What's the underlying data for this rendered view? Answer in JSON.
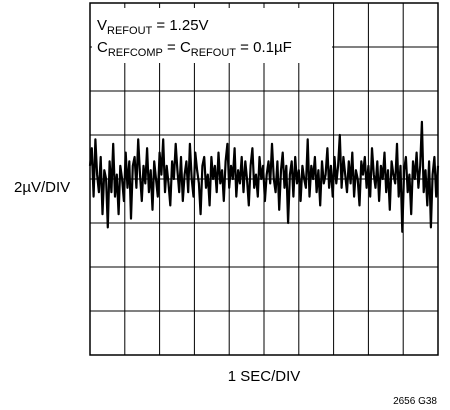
{
  "chart_data": {
    "type": "line",
    "title": "",
    "conditions": {
      "line1": {
        "prefix": "V",
        "sub": "REFOUT",
        "rest": " = 1.25V"
      },
      "line2": {
        "p1": "C",
        "s1": "REFCOMP",
        "p2": " = C",
        "s2": "REFOUT",
        "rest": " = 0.1µF"
      }
    },
    "ylabel": "2µV/DIV",
    "xlabel": "1 SEC/DIV",
    "figure_id": "2656 G38",
    "x_divisions": 10,
    "y_divisions": 8,
    "grid": true,
    "ylim": [
      -8,
      8
    ],
    "xlim": [
      0,
      10
    ],
    "series": [
      {
        "color": "#000000",
        "values": [
          0.6,
          1.4,
          -0.8,
          1.8,
          0.2,
          -0.6,
          1.0,
          -1.6,
          0.4,
          0.0,
          -2.2,
          0.8,
          -0.6,
          1.6,
          -0.8,
          0.2,
          -1.6,
          0.6,
          0.0,
          -1.0,
          1.2,
          -0.4,
          0.8,
          -1.8,
          0.6,
          1.0,
          -0.4,
          1.8,
          0.2,
          -1.0,
          0.6,
          -0.2,
          1.4,
          -0.6,
          0.4,
          -1.4,
          0.8,
          0.0,
          -0.8,
          1.2,
          0.2,
          1.8,
          -0.6,
          0.6,
          -0.2,
          -1.2,
          0.8,
          0.0,
          1.6,
          0.4,
          -0.6,
          1.0,
          -1.0,
          0.2,
          0.8,
          -0.6,
          1.6,
          0.0,
          -0.8,
          1.2,
          0.4,
          -0.2,
          -1.6,
          0.6,
          1.0,
          -0.4,
          0.2,
          -1.2,
          1.0,
          0.0,
          0.6,
          -0.6,
          1.2,
          -0.2,
          0.4,
          -1.0,
          0.8,
          1.6,
          -0.4,
          0.6,
          0.0,
          1.4,
          -0.8,
          0.4,
          -0.2,
          1.0,
          -0.6,
          0.8,
          0.0,
          -1.2,
          0.6,
          1.4,
          -0.4,
          0.2,
          -0.8,
          1.0,
          0.0,
          0.6,
          -1.0,
          0.2,
          0.8,
          -0.2,
          1.6,
          0.0,
          -0.6,
          0.8,
          -1.4,
          0.4,
          1.2,
          -0.4,
          0.6,
          -2.0,
          0.2,
          0.8,
          -0.8,
          1.0,
          -0.2,
          0.4,
          -1.0,
          0.6,
          0.0,
          -0.4,
          1.8,
          -0.8,
          0.6,
          0.0,
          1.0,
          -0.6,
          0.4,
          -1.2,
          0.8,
          -0.2,
          0.2,
          1.4,
          -0.4,
          0.6,
          -0.8,
          1.0,
          -0.2,
          0.6,
          2.0,
          -0.4,
          1.0,
          0.2,
          -0.6,
          0.8,
          -0.2,
          1.2,
          -0.8,
          0.4,
          0.0,
          -1.2,
          0.8,
          0.2,
          1.0,
          -0.4,
          0.6,
          -0.8,
          1.4,
          0.2,
          -0.4,
          0.8,
          -1.0,
          0.6,
          0.0,
          1.2,
          -0.6,
          0.4,
          -1.4,
          0.8,
          0.2,
          -0.2,
          1.6,
          -0.8,
          0.6,
          -2.4,
          0.4,
          1.0,
          -0.6,
          0.2,
          -1.6,
          0.8,
          0.0,
          1.2,
          -0.4,
          0.6,
          2.6,
          -0.6,
          0.4,
          -1.2,
          0.8,
          -2.2,
          0.2,
          1.0,
          -0.8,
          0.6
        ]
      }
    ]
  }
}
